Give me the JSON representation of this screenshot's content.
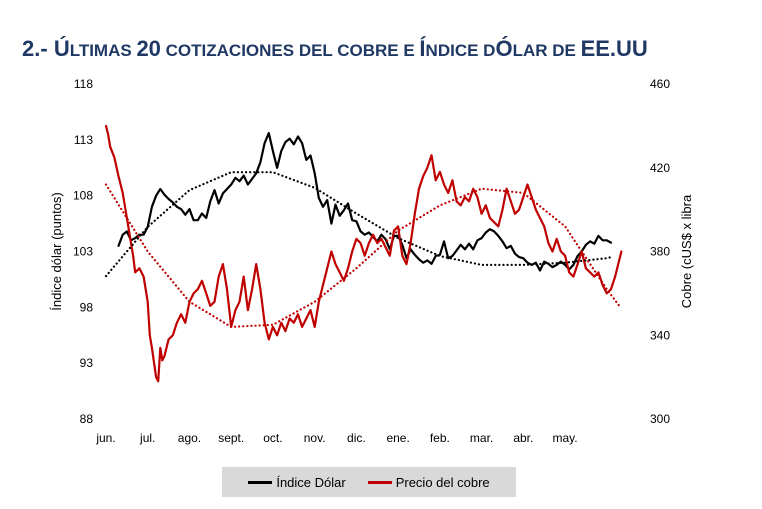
{
  "title": {
    "prefix": "2.-",
    "segments": [
      {
        "text": "Ú",
        "big": true
      },
      {
        "text": "LTIMAS ",
        "big": false
      },
      {
        "text": "20",
        "big": true
      },
      {
        "text": " COTIZACIONES DEL COBRE E ",
        "big": false
      },
      {
        "text": "Í",
        "big": true
      },
      {
        "text": "NDICE D",
        "big": false
      },
      {
        "text": "Ó",
        "big": true
      },
      {
        "text": "LAR DE ",
        "big": false
      },
      {
        "text": "EE.UU",
        "big": true
      }
    ]
  },
  "colors": {
    "dollar": "#000000",
    "copper": "#c00000",
    "title": "#1f3864",
    "legend_bg": "#d9d9d9"
  },
  "legend": {
    "dollar_label": "Índice Dólar",
    "copper_label": "Precio del cobre"
  },
  "chart_data": {
    "type": "line",
    "ylabel_left": "Índice dólar (puntos)",
    "ylabel_right": "Cobre (cUS$ x libra",
    "y_left_lim": [
      88,
      118
    ],
    "y_left_ticks": [
      88,
      93,
      98,
      103,
      108,
      113,
      118
    ],
    "y_right_lim": [
      300,
      460
    ],
    "y_right_ticks": [
      300,
      340,
      380,
      420,
      460
    ],
    "x_lim": [
      0,
      12.7
    ],
    "month_labels": [
      "jun.",
      "jul.",
      "ago.",
      "sept.",
      "oct.",
      "nov.",
      "dic.",
      "ene.",
      "feb.",
      "mar.",
      "abr.",
      "may."
    ],
    "month_positions": [
      0,
      1,
      2,
      3,
      4,
      5,
      6,
      7,
      8,
      9,
      10,
      11
    ],
    "grid": false,
    "legend_position": "bottom",
    "series": [
      {
        "name": "Índice Dólar",
        "axis": "left",
        "style": "solid",
        "points": [
          [
            0.3,
            103.5
          ],
          [
            0.4,
            104.5
          ],
          [
            0.5,
            104.8
          ],
          [
            0.6,
            104.0
          ],
          [
            0.7,
            104.2
          ],
          [
            0.8,
            104.5
          ],
          [
            0.9,
            104.5
          ],
          [
            1.0,
            105.2
          ],
          [
            1.1,
            107.0
          ],
          [
            1.2,
            108.0
          ],
          [
            1.3,
            108.6
          ],
          [
            1.4,
            108.1
          ],
          [
            1.5,
            107.7
          ],
          [
            1.6,
            107.4
          ],
          [
            1.7,
            107.0
          ],
          [
            1.8,
            106.8
          ],
          [
            1.9,
            106.3
          ],
          [
            2.0,
            106.8
          ],
          [
            2.1,
            105.8
          ],
          [
            2.2,
            105.8
          ],
          [
            2.3,
            106.4
          ],
          [
            2.4,
            106.0
          ],
          [
            2.5,
            107.5
          ],
          [
            2.6,
            108.5
          ],
          [
            2.7,
            107.3
          ],
          [
            2.8,
            108.2
          ],
          [
            2.9,
            108.6
          ],
          [
            3.0,
            109.0
          ],
          [
            3.1,
            109.6
          ],
          [
            3.2,
            109.3
          ],
          [
            3.3,
            109.8
          ],
          [
            3.4,
            109.0
          ],
          [
            3.5,
            109.5
          ],
          [
            3.6,
            110.0
          ],
          [
            3.7,
            111.0
          ],
          [
            3.8,
            112.7
          ],
          [
            3.9,
            113.6
          ],
          [
            4.0,
            112.0
          ],
          [
            4.1,
            110.5
          ],
          [
            4.2,
            112.0
          ],
          [
            4.3,
            112.8
          ],
          [
            4.4,
            113.1
          ],
          [
            4.5,
            112.6
          ],
          [
            4.6,
            113.3
          ],
          [
            4.7,
            112.7
          ],
          [
            4.8,
            111.2
          ],
          [
            4.9,
            111.6
          ],
          [
            5.0,
            110.0
          ],
          [
            5.1,
            107.8
          ],
          [
            5.2,
            107.0
          ],
          [
            5.3,
            107.6
          ],
          [
            5.4,
            105.5
          ],
          [
            5.5,
            107.2
          ],
          [
            5.6,
            106.2
          ],
          [
            5.7,
            106.7
          ],
          [
            5.8,
            107.3
          ],
          [
            5.9,
            105.8
          ],
          [
            6.0,
            105.7
          ],
          [
            6.1,
            104.8
          ],
          [
            6.2,
            104.5
          ],
          [
            6.3,
            104.7
          ],
          [
            6.4,
            104.3
          ],
          [
            6.5,
            103.9
          ],
          [
            6.6,
            104.5
          ],
          [
            6.7,
            104.1
          ],
          [
            6.8,
            103.2
          ],
          [
            6.9,
            104.4
          ],
          [
            7.0,
            104.4
          ],
          [
            7.1,
            103.6
          ],
          [
            7.2,
            102.4
          ],
          [
            7.3,
            103.2
          ],
          [
            7.4,
            102.7
          ],
          [
            7.5,
            102.3
          ],
          [
            7.6,
            102.0
          ],
          [
            7.7,
            102.2
          ],
          [
            7.8,
            101.9
          ],
          [
            7.9,
            102.6
          ],
          [
            8.0,
            102.7
          ],
          [
            8.1,
            103.9
          ],
          [
            8.2,
            102.4
          ],
          [
            8.3,
            102.6
          ],
          [
            8.4,
            103.1
          ],
          [
            8.5,
            103.6
          ],
          [
            8.6,
            103.2
          ],
          [
            8.7,
            103.7
          ],
          [
            8.8,
            103.2
          ],
          [
            8.9,
            104.0
          ],
          [
            9.0,
            104.2
          ],
          [
            9.1,
            104.7
          ],
          [
            9.2,
            105.0
          ],
          [
            9.3,
            104.8
          ],
          [
            9.4,
            104.4
          ],
          [
            9.5,
            103.9
          ],
          [
            9.6,
            103.3
          ],
          [
            9.7,
            103.5
          ],
          [
            9.8,
            102.8
          ],
          [
            9.9,
            102.5
          ],
          [
            10.0,
            102.4
          ],
          [
            10.1,
            102.0
          ],
          [
            10.2,
            101.8
          ],
          [
            10.3,
            102.0
          ],
          [
            10.4,
            101.3
          ],
          [
            10.5,
            102.1
          ],
          [
            10.6,
            101.9
          ],
          [
            10.7,
            101.6
          ],
          [
            10.8,
            101.8
          ],
          [
            10.9,
            102.1
          ],
          [
            11.0,
            101.8
          ],
          [
            11.1,
            101.4
          ],
          [
            11.2,
            101.8
          ],
          [
            11.3,
            102.6
          ],
          [
            11.4,
            103.0
          ],
          [
            11.5,
            103.6
          ],
          [
            11.6,
            103.9
          ],
          [
            11.7,
            103.7
          ],
          [
            11.8,
            104.4
          ],
          [
            11.9,
            104.0
          ],
          [
            12.0,
            104.0
          ],
          [
            12.1,
            103.8
          ]
        ]
      },
      {
        "name": "Precio del cobre",
        "axis": "right",
        "style": "solid",
        "points": [
          [
            0.0,
            440
          ],
          [
            0.05,
            436
          ],
          [
            0.1,
            430
          ],
          [
            0.2,
            425
          ],
          [
            0.3,
            416
          ],
          [
            0.4,
            408
          ],
          [
            0.5,
            396
          ],
          [
            0.6,
            384
          ],
          [
            0.65,
            378
          ],
          [
            0.7,
            370
          ],
          [
            0.8,
            372
          ],
          [
            0.9,
            368
          ],
          [
            1.0,
            356
          ],
          [
            1.05,
            340
          ],
          [
            1.1,
            334
          ],
          [
            1.2,
            320
          ],
          [
            1.25,
            318
          ],
          [
            1.3,
            334
          ],
          [
            1.35,
            328
          ],
          [
            1.4,
            330
          ],
          [
            1.5,
            338
          ],
          [
            1.6,
            340
          ],
          [
            1.7,
            346
          ],
          [
            1.8,
            350
          ],
          [
            1.9,
            346
          ],
          [
            2.0,
            356
          ],
          [
            2.1,
            360
          ],
          [
            2.2,
            362
          ],
          [
            2.3,
            366
          ],
          [
            2.4,
            360
          ],
          [
            2.5,
            354
          ],
          [
            2.6,
            356
          ],
          [
            2.7,
            368
          ],
          [
            2.8,
            374
          ],
          [
            2.9,
            362
          ],
          [
            3.0,
            344
          ],
          [
            3.1,
            352
          ],
          [
            3.2,
            356
          ],
          [
            3.3,
            368
          ],
          [
            3.4,
            352
          ],
          [
            3.5,
            362
          ],
          [
            3.6,
            374
          ],
          [
            3.7,
            362
          ],
          [
            3.8,
            346
          ],
          [
            3.9,
            338
          ],
          [
            4.0,
            344
          ],
          [
            4.1,
            340
          ],
          [
            4.2,
            346
          ],
          [
            4.3,
            342
          ],
          [
            4.4,
            348
          ],
          [
            4.5,
            346
          ],
          [
            4.6,
            350
          ],
          [
            4.7,
            344
          ],
          [
            4.8,
            348
          ],
          [
            4.9,
            352
          ],
          [
            5.0,
            344
          ],
          [
            5.1,
            356
          ],
          [
            5.2,
            364
          ],
          [
            5.3,
            372
          ],
          [
            5.4,
            380
          ],
          [
            5.5,
            374
          ],
          [
            5.6,
            370
          ],
          [
            5.7,
            366
          ],
          [
            5.8,
            372
          ],
          [
            5.9,
            380
          ],
          [
            6.0,
            386
          ],
          [
            6.1,
            384
          ],
          [
            6.2,
            378
          ],
          [
            6.3,
            384
          ],
          [
            6.4,
            388
          ],
          [
            6.5,
            384
          ],
          [
            6.6,
            386
          ],
          [
            6.7,
            382
          ],
          [
            6.8,
            378
          ],
          [
            6.9,
            390
          ],
          [
            7.0,
            392
          ],
          [
            7.1,
            378
          ],
          [
            7.2,
            374
          ],
          [
            7.3,
            384
          ],
          [
            7.4,
            398
          ],
          [
            7.5,
            410
          ],
          [
            7.6,
            416
          ],
          [
            7.7,
            420
          ],
          [
            7.8,
            426
          ],
          [
            7.9,
            414
          ],
          [
            8.0,
            418
          ],
          [
            8.1,
            412
          ],
          [
            8.2,
            408
          ],
          [
            8.3,
            414
          ],
          [
            8.4,
            404
          ],
          [
            8.5,
            402
          ],
          [
            8.6,
            406
          ],
          [
            8.7,
            404
          ],
          [
            8.8,
            410
          ],
          [
            8.9,
            406
          ],
          [
            9.0,
            398
          ],
          [
            9.1,
            402
          ],
          [
            9.2,
            396
          ],
          [
            9.3,
            394
          ],
          [
            9.4,
            392
          ],
          [
            9.5,
            400
          ],
          [
            9.6,
            410
          ],
          [
            9.7,
            404
          ],
          [
            9.8,
            398
          ],
          [
            9.9,
            400
          ],
          [
            10.0,
            406
          ],
          [
            10.1,
            412
          ],
          [
            10.2,
            406
          ],
          [
            10.3,
            400
          ],
          [
            10.4,
            396
          ],
          [
            10.5,
            392
          ],
          [
            10.6,
            384
          ],
          [
            10.7,
            380
          ],
          [
            10.8,
            386
          ],
          [
            10.9,
            380
          ],
          [
            11.0,
            378
          ],
          [
            11.1,
            370
          ],
          [
            11.2,
            368
          ],
          [
            11.3,
            374
          ],
          [
            11.4,
            380
          ],
          [
            11.5,
            372
          ],
          [
            11.6,
            370
          ],
          [
            11.7,
            368
          ],
          [
            11.8,
            370
          ],
          [
            11.9,
            364
          ],
          [
            12.0,
            360
          ],
          [
            12.1,
            362
          ],
          [
            12.2,
            368
          ],
          [
            12.3,
            376
          ],
          [
            12.35,
            380
          ]
        ]
      },
      {
        "name": "Índice Dólar trend",
        "axis": "left",
        "style": "dotted",
        "points": [
          [
            0.0,
            100.8
          ],
          [
            1.0,
            105.2
          ],
          [
            2.0,
            108.5
          ],
          [
            3.0,
            110.1
          ],
          [
            4.0,
            110.1
          ],
          [
            5.0,
            108.7
          ],
          [
            6.0,
            106.4
          ],
          [
            7.0,
            104.2
          ],
          [
            8.0,
            102.6
          ],
          [
            9.0,
            101.8
          ],
          [
            10.0,
            101.8
          ],
          [
            11.0,
            102.0
          ],
          [
            12.0,
            102.4
          ],
          [
            12.1,
            102.5
          ]
        ]
      },
      {
        "name": "Precio del cobre trend",
        "axis": "right",
        "style": "dotted",
        "points": [
          [
            0.0,
            412
          ],
          [
            1.0,
            380
          ],
          [
            2.0,
            356
          ],
          [
            3.0,
            344
          ],
          [
            4.0,
            345
          ],
          [
            5.0,
            356
          ],
          [
            6.0,
            372
          ],
          [
            7.0,
            390
          ],
          [
            8.0,
            402
          ],
          [
            9.0,
            410
          ],
          [
            10.0,
            408
          ],
          [
            11.0,
            392
          ],
          [
            12.0,
            362
          ],
          [
            12.3,
            354
          ]
        ]
      }
    ]
  }
}
